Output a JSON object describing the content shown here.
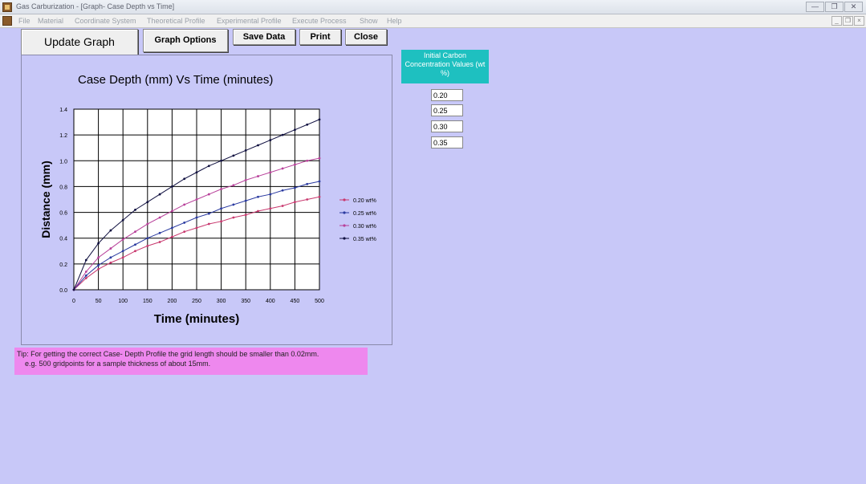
{
  "window": {
    "title": "Gas Carburization - [Graph- Case Depth vs Time]"
  },
  "menu": [
    "File",
    "Material",
    "Coordinate System",
    "Theoretical Profile",
    "Experimental Profile",
    "Execute Process",
    "Show",
    "Help"
  ],
  "toolbar": {
    "update_graph": "Update Graph",
    "graph_options": "Graph Options",
    "save_data": "Save Data",
    "print": "Print",
    "close": "Close"
  },
  "concentration": {
    "header": "Initial Carbon Concentration Values (wt %)",
    "values": [
      "0.20",
      "0.25",
      "0.30",
      "0.35"
    ]
  },
  "tip": {
    "line1": "Tip: For getting the correct Case- Depth Profile the grid length should be smaller than 0.02mm.",
    "line2": "e.g. 500 gridpoints for a sample thickness of about 15mm."
  },
  "chart_data": {
    "type": "line",
    "title": "Case Depth (mm) Vs Time (minutes)",
    "xlabel": "Time (minutes)",
    "ylabel": "Distance (mm)",
    "xlim": [
      0,
      500
    ],
    "ylim": [
      0,
      1.4
    ],
    "xticks": [
      "0",
      "50",
      "100",
      "150",
      "200",
      "250",
      "300",
      "350",
      "400",
      "450",
      "500"
    ],
    "yticks": [
      "0.0",
      "0.2",
      "0.4",
      "0.6",
      "0.8",
      "1.0",
      "1.2",
      "1.4"
    ],
    "grid": true,
    "legend_position": "right",
    "x": [
      0,
      25,
      50,
      75,
      100,
      125,
      150,
      175,
      200,
      225,
      250,
      275,
      300,
      325,
      350,
      375,
      400,
      425,
      450,
      475,
      500
    ],
    "series": [
      {
        "name": "0.20 wt%",
        "color": "#c8386e",
        "values": [
          0,
          0.09,
          0.16,
          0.21,
          0.25,
          0.3,
          0.34,
          0.37,
          0.41,
          0.45,
          0.48,
          0.51,
          0.53,
          0.56,
          0.58,
          0.61,
          0.63,
          0.65,
          0.68,
          0.7,
          0.72
        ]
      },
      {
        "name": "0.25 wt%",
        "color": "#2a3aa0",
        "values": [
          0,
          0.11,
          0.19,
          0.25,
          0.3,
          0.35,
          0.4,
          0.44,
          0.48,
          0.52,
          0.56,
          0.59,
          0.63,
          0.66,
          0.69,
          0.72,
          0.74,
          0.77,
          0.79,
          0.82,
          0.84
        ]
      },
      {
        "name": "0.30 wt%",
        "color": "#b8409a",
        "values": [
          0,
          0.14,
          0.25,
          0.32,
          0.39,
          0.45,
          0.51,
          0.56,
          0.61,
          0.66,
          0.7,
          0.74,
          0.78,
          0.81,
          0.85,
          0.88,
          0.91,
          0.94,
          0.97,
          1.0,
          1.02
        ]
      },
      {
        "name": "0.35 wt%",
        "color": "#101040",
        "values": [
          0,
          0.23,
          0.36,
          0.46,
          0.54,
          0.62,
          0.68,
          0.74,
          0.8,
          0.86,
          0.91,
          0.96,
          1.0,
          1.04,
          1.08,
          1.12,
          1.16,
          1.2,
          1.24,
          1.28,
          1.32
        ]
      }
    ]
  }
}
